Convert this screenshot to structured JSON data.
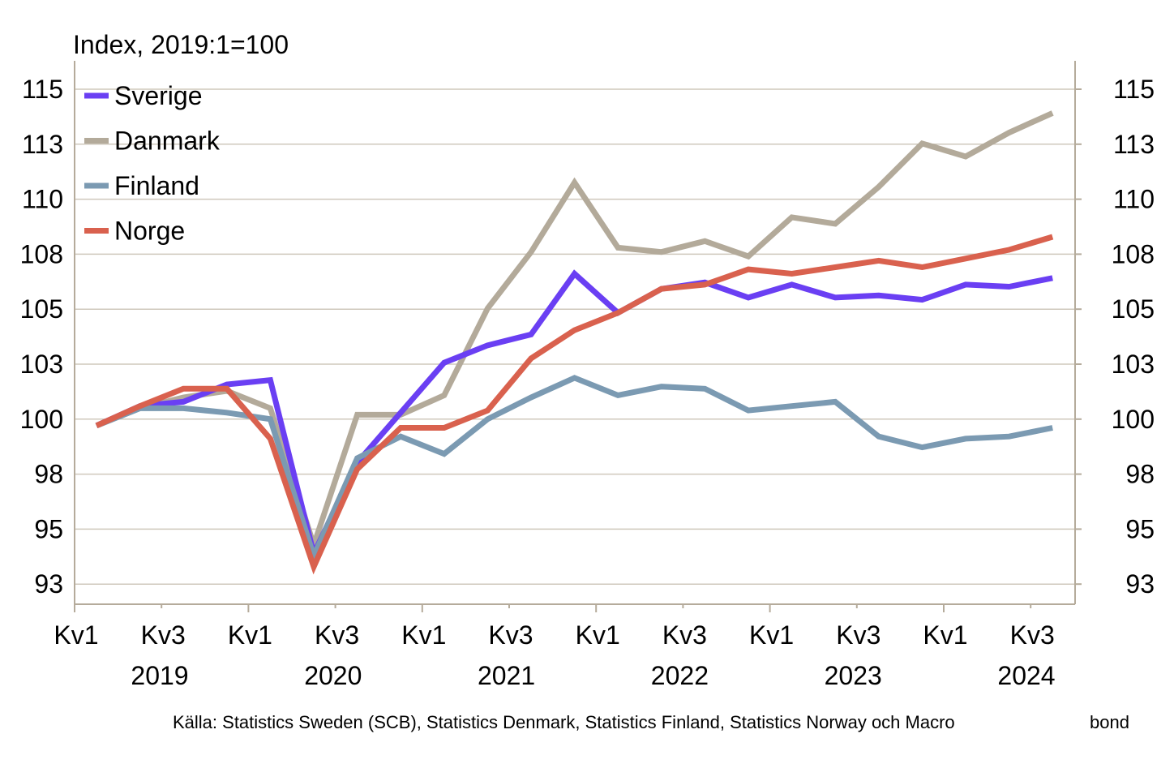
{
  "chart_data": {
    "type": "line",
    "unit_label": "Index, 2019:1=100",
    "x": [
      "2019Q1",
      "2019Q2",
      "2019Q3",
      "2019Q4",
      "2020Q1",
      "2020Q2",
      "2020Q3",
      "2020Q4",
      "2021Q1",
      "2021Q2",
      "2021Q3",
      "2021Q4",
      "2022Q1",
      "2022Q2",
      "2022Q3",
      "2022Q4",
      "2023Q1",
      "2023Q2",
      "2023Q3",
      "2023Q4",
      "2024Q1",
      "2024Q2",
      "2024Q3"
    ],
    "quarter_labels": [
      "Kv1",
      "Kv3",
      "Kv1",
      "Kv3",
      "Kv1",
      "Kv3",
      "Kv1",
      "Kv3",
      "Kv1",
      "Kv3",
      "Kv1",
      "Kv3"
    ],
    "year_labels": [
      "2019",
      "2020",
      "2021",
      "2022",
      "2023",
      "2024"
    ],
    "y_ticks": [
      "115",
      "113",
      "110",
      "108",
      "105",
      "103",
      "100",
      "98",
      "95",
      "93"
    ],
    "ylim": [
      92,
      116
    ],
    "grid": true,
    "legend_position": "top-left",
    "series": [
      {
        "name": "Sverige",
        "color": "#6a3ff3",
        "values": [
          100,
          100.9,
          101.1,
          101.9,
          102.1,
          94.1,
          98.3,
          100.6,
          102.9,
          103.7,
          104.2,
          107.0,
          105.2,
          106.3,
          106.6,
          105.9,
          106.5,
          105.9,
          106.0,
          105.8,
          106.5,
          106.4,
          106.8
        ]
      },
      {
        "name": "Danmark",
        "color": "#b3aa9a",
        "values": [
          100,
          100.8,
          101.3,
          101.6,
          100.8,
          94.5,
          100.5,
          100.5,
          101.4,
          105.4,
          108.0,
          111.2,
          108.2,
          108.0,
          108.5,
          107.8,
          109.6,
          109.3,
          111.0,
          113.0,
          112.4,
          113.5,
          114.4
        ]
      },
      {
        "name": "Finland",
        "color": "#7b9ab2",
        "values": [
          100,
          100.8,
          100.8,
          100.6,
          100.3,
          94.0,
          98.5,
          99.5,
          98.7,
          100.3,
          101.3,
          102.2,
          101.4,
          101.8,
          101.7,
          100.7,
          100.9,
          101.1,
          99.5,
          99.0,
          99.4,
          99.5,
          99.9
        ]
      },
      {
        "name": "Norge",
        "color": "#d9614e",
        "values": [
          100,
          100.9,
          101.7,
          101.7,
          99.4,
          93.5,
          98.0,
          99.9,
          99.9,
          100.7,
          103.1,
          104.4,
          105.2,
          106.3,
          106.5,
          107.2,
          107.0,
          107.3,
          107.6,
          107.3,
          107.7,
          108.1,
          108.7
        ]
      }
    ],
    "source": "Källa: Statistics Sweden (SCB), Statistics Denmark, Statistics Finland, Statistics Norway  och Macro",
    "source_tail": "bond"
  }
}
